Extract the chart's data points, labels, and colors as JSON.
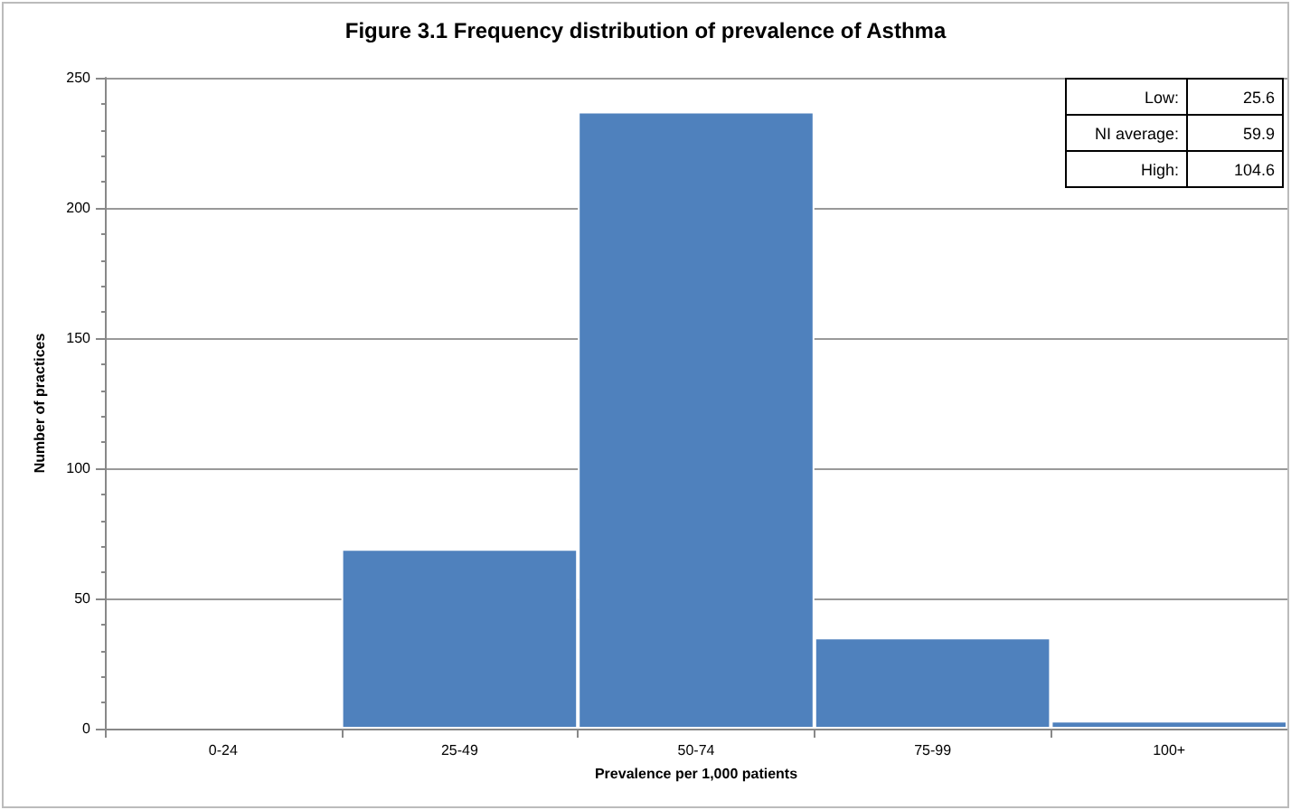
{
  "chart_data": {
    "type": "bar",
    "title": "Figure 3.1 Frequency distribution of prevalence of Asthma",
    "xlabel": "Prevalence per 1,000 patients",
    "ylabel": "Number of practices",
    "categories": [
      "0-24",
      "25-49",
      "50-74",
      "75-99",
      "100+"
    ],
    "values": [
      0,
      69,
      237,
      35,
      3
    ],
    "color": "#4f81bd",
    "ylim": [
      0,
      250
    ],
    "yticks": [
      0,
      50,
      100,
      150,
      200,
      250
    ],
    "grid": "y",
    "annotations": [
      "Low:",
      "25.6",
      "NI average:",
      "59.9",
      "High:",
      "104.6"
    ]
  }
}
